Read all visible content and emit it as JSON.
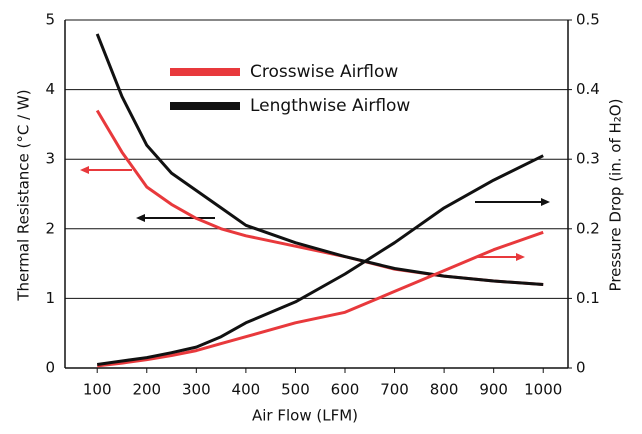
{
  "chart_data": {
    "type": "line",
    "x": [
      100,
      150,
      200,
      250,
      300,
      350,
      400,
      500,
      600,
      700,
      800,
      900,
      1000
    ],
    "xlim": [
      35,
      1050
    ],
    "xticks": [
      100,
      200,
      300,
      400,
      500,
      600,
      700,
      800,
      900,
      1000
    ],
    "ylim": [
      0,
      5
    ],
    "yticks": [
      0,
      1,
      2,
      3,
      4,
      5
    ],
    "y2lim": [
      0,
      0.5
    ],
    "y2ticks": [
      0,
      0.1,
      0.2,
      0.3,
      0.4,
      0.5
    ],
    "xlabel": "Air Flow (LFM)",
    "ylabel": "Thermal Resistance (°C / W)",
    "y2label": "Pressure Drop (in. of H₂O)",
    "grid": true,
    "series": [
      {
        "name": "Crosswise Airflow",
        "color": "#e8393c",
        "values": [
          3.7,
          3.1,
          2.6,
          2.35,
          2.15,
          2.0,
          1.9,
          1.75,
          1.6,
          1.42,
          1.32,
          1.25,
          1.2
        ]
      },
      {
        "name": "Lengthwise Airflow",
        "color": "#111111",
        "values": [
          4.8,
          3.9,
          3.2,
          2.8,
          2.55,
          2.3,
          2.05,
          1.8,
          1.6,
          1.43,
          1.32,
          1.25,
          1.2
        ]
      },
      {
        "color": "#e8393c",
        "axis": "y2",
        "values": [
          0.003,
          0.007,
          0.012,
          0.018,
          0.025,
          0.035,
          0.045,
          0.065,
          0.08,
          0.11,
          0.14,
          0.17,
          0.195
        ]
      },
      {
        "color": "#111111",
        "axis": "y2",
        "values": [
          0.005,
          0.01,
          0.015,
          0.022,
          0.03,
          0.045,
          0.065,
          0.095,
          0.135,
          0.18,
          0.23,
          0.27,
          0.305
        ]
      }
    ]
  }
}
